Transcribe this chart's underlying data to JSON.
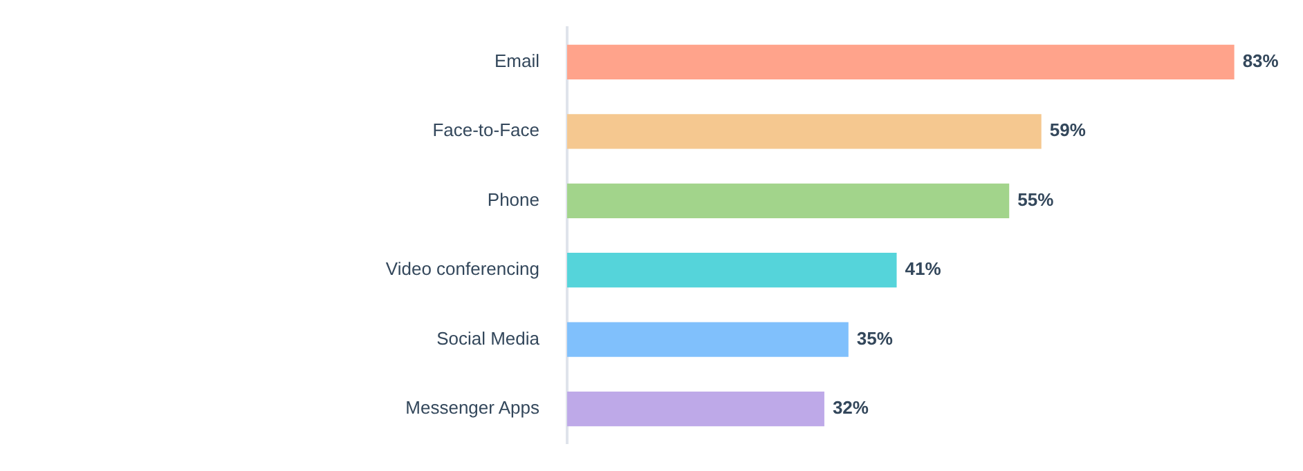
{
  "chart_data": {
    "type": "bar",
    "orientation": "horizontal",
    "categories": [
      "Email",
      "Face-to-Face",
      "Phone",
      "Video conferencing",
      "Social Media",
      "Messenger Apps"
    ],
    "values": [
      83,
      59,
      55,
      41,
      35,
      32
    ],
    "colors": [
      "#ffa38b",
      "#f5c890",
      "#a2d48b",
      "#55d4da",
      "#80c0fc",
      "#bea9e8"
    ],
    "value_labels": [
      "83%",
      "59%",
      "55%",
      "41%",
      "35%",
      "32%"
    ],
    "tick_labels": "y"
  }
}
